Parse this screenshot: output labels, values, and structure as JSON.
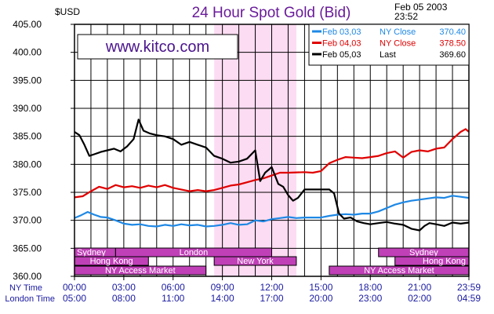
{
  "chart_data": {
    "type": "line",
    "title": "24 Hour Spot Gold (Bid)",
    "ylabel": "$USD",
    "timestamp": [
      "Feb 05 2003",
      "23:52"
    ],
    "watermark": "www.kitco.com",
    "ylim": [
      360,
      405
    ],
    "y_ticks": [
      "405.00",
      "400.00",
      "395.00",
      "390.00",
      "385.00",
      "380.00",
      "375.00",
      "370.00",
      "365.00",
      "360.00"
    ],
    "x_rows": [
      {
        "label": "NY Time",
        "ticks": [
          "00:00",
          "03:00",
          "06:00",
          "09:00",
          "12:00",
          "15:00",
          "18:00",
          "21:00",
          "23:59"
        ]
      },
      {
        "label": "London Time",
        "ticks": [
          "05:00",
          "08:00",
          "11:00",
          "14:00",
          "17:00",
          "20:00",
          "23:00",
          "02:00",
          "04:59"
        ]
      }
    ],
    "xlim_hours": [
      0,
      24
    ],
    "highlight_hours": [
      8.5,
      13.5
    ],
    "legend": [
      {
        "date": "Feb 03,03",
        "kind": "NY Close",
        "value": "370.40",
        "color": "#1e88e5"
      },
      {
        "date": "Feb 04,03",
        "kind": "NY Close",
        "value": "378.50",
        "color": "#e00000"
      },
      {
        "date": "Feb 05,03",
        "kind": "Last",
        "value": "369.60",
        "color": "#000000"
      }
    ],
    "sessions": [
      {
        "name": "Sydney",
        "start": 0,
        "end": 2.5,
        "row": 0
      },
      {
        "name": "London",
        "start": 2.5,
        "end": 12,
        "row": 0
      },
      {
        "name": "Sydney",
        "start": 18.5,
        "end": 24,
        "row": 0
      },
      {
        "name": "Hong Kong",
        "start": 0,
        "end": 4.5,
        "row": 1
      },
      {
        "name": "New York",
        "start": 8.5,
        "end": 13.5,
        "row": 1
      },
      {
        "name": "Hong Kong",
        "start": 19.5,
        "end": 24,
        "row": 1
      },
      {
        "name": "NY Access Market",
        "start": 0,
        "end": 8,
        "row": 2
      },
      {
        "name": "NY Access Market",
        "start": 15.5,
        "end": 24,
        "row": 2
      }
    ],
    "series": [
      {
        "name": "Feb 03,03",
        "color": "#1e88e5",
        "points": [
          [
            0,
            370.4
          ],
          [
            0.4,
            370.9
          ],
          [
            0.8,
            371.5
          ],
          [
            1.2,
            371.0
          ],
          [
            1.6,
            370.6
          ],
          [
            2.0,
            370.5
          ],
          [
            2.5,
            370.0
          ],
          [
            3.0,
            369.4
          ],
          [
            3.5,
            369.2
          ],
          [
            4.0,
            369.3
          ],
          [
            4.5,
            369.0
          ],
          [
            5.0,
            368.9
          ],
          [
            5.5,
            369.2
          ],
          [
            6.0,
            369.0
          ],
          [
            6.5,
            369.3
          ],
          [
            7.0,
            369.1
          ],
          [
            7.5,
            369.2
          ],
          [
            8.0,
            368.9
          ],
          [
            8.5,
            369.0
          ],
          [
            9.0,
            369.2
          ],
          [
            9.5,
            369.5
          ],
          [
            10.0,
            369.2
          ],
          [
            10.5,
            369.3
          ],
          [
            11.0,
            370.0
          ],
          [
            11.5,
            369.8
          ],
          [
            12.0,
            370.2
          ],
          [
            12.5,
            370.4
          ],
          [
            13.0,
            370.6
          ],
          [
            13.5,
            370.4
          ],
          [
            14.0,
            370.5
          ],
          [
            15.0,
            370.5
          ],
          [
            15.5,
            370.8
          ],
          [
            16.0,
            371.0
          ],
          [
            16.5,
            371.1
          ],
          [
            17.0,
            371.0
          ],
          [
            17.5,
            371.2
          ],
          [
            18.0,
            371.2
          ],
          [
            18.5,
            371.6
          ],
          [
            19.0,
            372.2
          ],
          [
            19.5,
            372.8
          ],
          [
            20.0,
            373.2
          ],
          [
            20.5,
            373.5
          ],
          [
            21.0,
            373.7
          ],
          [
            21.5,
            373.9
          ],
          [
            22.0,
            374.1
          ],
          [
            22.5,
            374.0
          ],
          [
            23.0,
            374.4
          ],
          [
            23.5,
            374.2
          ],
          [
            24,
            374.0
          ]
        ]
      },
      {
        "name": "Feb 04,03",
        "color": "#e00000",
        "points": [
          [
            0,
            374.1
          ],
          [
            0.5,
            374.3
          ],
          [
            1.0,
            375.2
          ],
          [
            1.5,
            376.0
          ],
          [
            2.0,
            375.6
          ],
          [
            2.5,
            376.3
          ],
          [
            3.0,
            375.9
          ],
          [
            3.5,
            376.1
          ],
          [
            4.0,
            375.8
          ],
          [
            4.5,
            376.2
          ],
          [
            5.0,
            375.9
          ],
          [
            5.5,
            376.3
          ],
          [
            6.0,
            375.8
          ],
          [
            6.5,
            375.5
          ],
          [
            7.0,
            375.2
          ],
          [
            7.5,
            375.4
          ],
          [
            8.0,
            375.2
          ],
          [
            8.5,
            375.4
          ],
          [
            9.0,
            375.8
          ],
          [
            9.5,
            376.2
          ],
          [
            10.0,
            376.4
          ],
          [
            10.5,
            376.8
          ],
          [
            11.0,
            377.2
          ],
          [
            11.5,
            377.5
          ],
          [
            12.0,
            378.0
          ],
          [
            12.5,
            378.5
          ],
          [
            13.0,
            378.5
          ],
          [
            14.0,
            378.6
          ],
          [
            14.5,
            378.5
          ],
          [
            15.0,
            378.8
          ],
          [
            15.5,
            380.2
          ],
          [
            16.0,
            380.8
          ],
          [
            16.5,
            381.3
          ],
          [
            17.0,
            381.2
          ],
          [
            17.5,
            381.1
          ],
          [
            18.0,
            381.3
          ],
          [
            18.5,
            381.5
          ],
          [
            19.0,
            382.0
          ],
          [
            19.5,
            382.3
          ],
          [
            20.0,
            381.2
          ],
          [
            20.5,
            382.2
          ],
          [
            21.0,
            382.5
          ],
          [
            21.5,
            382.3
          ],
          [
            22.0,
            382.8
          ],
          [
            22.5,
            383.0
          ],
          [
            23.0,
            384.5
          ],
          [
            23.5,
            385.8
          ],
          [
            23.8,
            386.3
          ],
          [
            24,
            385.8
          ]
        ]
      },
      {
        "name": "Feb 05,03",
        "color": "#000000",
        "points": [
          [
            0,
            385.8
          ],
          [
            0.3,
            385.2
          ],
          [
            0.6,
            383.5
          ],
          [
            0.9,
            381.5
          ],
          [
            1.2,
            381.8
          ],
          [
            1.6,
            382.2
          ],
          [
            2.0,
            382.5
          ],
          [
            2.4,
            382.8
          ],
          [
            2.8,
            382.3
          ],
          [
            3.2,
            383.2
          ],
          [
            3.6,
            384.5
          ],
          [
            3.9,
            388.0
          ],
          [
            4.2,
            386.0
          ],
          [
            4.6,
            385.5
          ],
          [
            5.0,
            385.2
          ],
          [
            5.5,
            385.0
          ],
          [
            6.0,
            384.5
          ],
          [
            6.5,
            383.5
          ],
          [
            7.0,
            384.0
          ],
          [
            7.5,
            383.5
          ],
          [
            8.0,
            383.0
          ],
          [
            8.5,
            381.5
          ],
          [
            9.0,
            381.0
          ],
          [
            9.5,
            380.3
          ],
          [
            10.0,
            380.5
          ],
          [
            10.5,
            381.0
          ],
          [
            11.0,
            382.5
          ],
          [
            11.3,
            377.0
          ],
          [
            11.6,
            378.5
          ],
          [
            12.0,
            379.5
          ],
          [
            12.4,
            376.5
          ],
          [
            12.7,
            376.0
          ],
          [
            13.0,
            374.5
          ],
          [
            13.3,
            373.5
          ],
          [
            13.6,
            374.0
          ],
          [
            14.0,
            375.5
          ],
          [
            15.0,
            375.5
          ],
          [
            15.5,
            375.5
          ],
          [
            15.8,
            374.8
          ],
          [
            16.1,
            371.2
          ],
          [
            16.4,
            370.3
          ],
          [
            16.8,
            370.5
          ],
          [
            17.2,
            369.8
          ],
          [
            17.6,
            369.5
          ],
          [
            18.0,
            369.3
          ],
          [
            18.5,
            369.5
          ],
          [
            19.0,
            369.7
          ],
          [
            19.5,
            369.4
          ],
          [
            20.0,
            369.2
          ],
          [
            20.5,
            368.5
          ],
          [
            21.0,
            368.2
          ],
          [
            21.3,
            369.0
          ],
          [
            21.6,
            369.5
          ],
          [
            22.0,
            369.3
          ],
          [
            22.5,
            369.0
          ],
          [
            23.0,
            369.6
          ],
          [
            23.5,
            369.4
          ],
          [
            24,
            369.6
          ]
        ]
      }
    ]
  }
}
